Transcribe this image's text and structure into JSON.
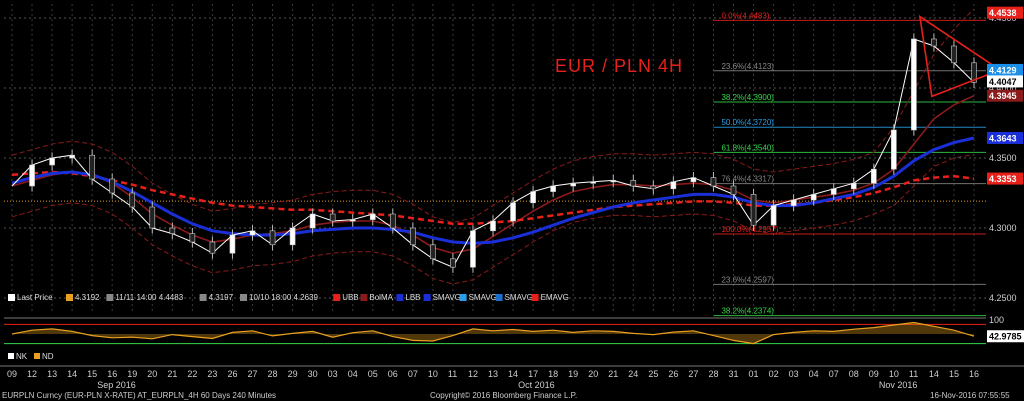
{
  "chart_data": {
    "type": "line",
    "title": "EUR / PLN 4H",
    "x_ticks": [
      "09",
      "12",
      "13",
      "14",
      "15",
      "16",
      "19",
      "20",
      "21",
      "22",
      "23",
      "26",
      "27",
      "28",
      "29",
      "30",
      "03",
      "04",
      "05",
      "06",
      "07",
      "10",
      "11",
      "12",
      "13",
      "14",
      "17",
      "18",
      "19",
      "20",
      "21",
      "24",
      "25",
      "26",
      "27",
      "28",
      "31",
      "01",
      "02",
      "03",
      "04",
      "07",
      "08",
      "09",
      "10",
      "11",
      "14",
      "15",
      "16"
    ],
    "months": [
      {
        "label": "Sep 2016",
        "at": 5
      },
      {
        "label": "Oct 2016",
        "at": 26
      },
      {
        "label": "Nov 2016",
        "at": 44
      }
    ],
    "ylim": [
      4.24,
      4.46
    ],
    "y_ticks": [
      4.25,
      4.3,
      4.35,
      4.4,
      4.45
    ],
    "y_tick_labels": [
      "4.2500",
      "4.3000",
      "4.3500",
      "4.4000",
      "4.4500"
    ],
    "price_tags": [
      {
        "label": "4.4538",
        "value": 4.4538,
        "color": "#e8201a",
        "text_color": "#ffffff"
      },
      {
        "label": "4.4129",
        "value": 4.4129,
        "color": "#1a8fe8",
        "text_color": "#ffffff"
      },
      {
        "label": "4.4047",
        "value": 4.4047,
        "color": "#ffffff",
        "text_color": "#000000"
      },
      {
        "label": "4.3945",
        "value": 4.3945,
        "color": "#8b1a1a",
        "text_color": "#ffffff"
      },
      {
        "label": "4.3643",
        "value": 4.3643,
        "color": "#1a2fd8",
        "text_color": "#ffffff"
      },
      {
        "label": "4.3353",
        "value": 4.3353,
        "color": "#e8201a",
        "text_color": "#ffffff"
      }
    ],
    "fib_levels": [
      {
        "label": "0.0%(4.4483)",
        "value": 4.4483,
        "color": "#e8201a"
      },
      {
        "label": "23.6%(4.4123)",
        "value": 4.4123,
        "color": "#888888"
      },
      {
        "label": "38.2%(4.3900)",
        "value": 4.39,
        "color": "#35d84a"
      },
      {
        "label": "50.0%(4.3720)",
        "value": 4.372,
        "color": "#2a9fe8"
      },
      {
        "label": "61.8%(4.3540)",
        "value": 4.354,
        "color": "#35d84a"
      },
      {
        "label": "76.4%(4.3317)",
        "value": 4.3317,
        "color": "#888888"
      },
      {
        "label": "100.0%(4.2957)",
        "value": 4.2957,
        "color": "#e8201a"
      },
      {
        "label": "23.6%(4.2597)",
        "value": 4.2597,
        "color": "#888888"
      },
      {
        "label": "38.2%(4.2374)",
        "value": 4.2374,
        "color": "#35d84a"
      }
    ],
    "series": [
      {
        "name": "Last Price",
        "values": [
          4.33,
          4.345,
          4.35,
          4.352,
          4.335,
          4.325,
          4.315,
          4.3,
          4.296,
          4.29,
          4.282,
          4.295,
          4.298,
          4.288,
          4.3,
          4.31,
          4.305,
          4.306,
          4.31,
          4.3,
          4.288,
          4.278,
          4.272,
          4.298,
          4.305,
          4.318,
          4.326,
          4.33,
          4.332,
          4.333,
          4.334,
          4.33,
          4.328,
          4.333,
          4.336,
          4.33,
          4.324,
          4.302,
          4.316,
          4.32,
          4.324,
          4.328,
          4.332,
          4.342,
          4.37,
          4.435,
          4.43,
          4.418,
          4.404
        ]
      },
      {
        "name": "SMAVG",
        "values": [
          4.332,
          4.336,
          4.339,
          4.34,
          4.338,
          4.333,
          4.326,
          4.318,
          4.31,
          4.303,
          4.298,
          4.296,
          4.295,
          4.295,
          4.296,
          4.298,
          4.299,
          4.3,
          4.3,
          4.299,
          4.297,
          4.293,
          4.29,
          4.289,
          4.29,
          4.293,
          4.297,
          4.302,
          4.307,
          4.311,
          4.315,
          4.318,
          4.32,
          4.322,
          4.324,
          4.324,
          4.322,
          4.318,
          4.316,
          4.316,
          4.318,
          4.321,
          4.324,
          4.329,
          4.337,
          4.348,
          4.356,
          4.361,
          4.3643
        ]
      },
      {
        "name": "EMAVG",
        "values": [
          4.338,
          4.339,
          4.34,
          4.339,
          4.337,
          4.334,
          4.331,
          4.327,
          4.324,
          4.321,
          4.318,
          4.316,
          4.315,
          4.314,
          4.313,
          4.313,
          4.312,
          4.311,
          4.31,
          4.309,
          4.307,
          4.305,
          4.303,
          4.303,
          4.304,
          4.305,
          4.307,
          4.309,
          4.311,
          4.313,
          4.315,
          4.316,
          4.317,
          4.318,
          4.319,
          4.319,
          4.318,
          4.316,
          4.316,
          4.317,
          4.318,
          4.32,
          4.322,
          4.325,
          4.329,
          4.334,
          4.336,
          4.337,
          4.3353
        ]
      },
      {
        "name": "BolMA",
        "values": [
          4.33,
          4.334,
          4.338,
          4.34,
          4.338,
          4.332,
          4.322,
          4.31,
          4.302,
          4.295,
          4.29,
          4.292,
          4.295,
          4.296,
          4.298,
          4.302,
          4.304,
          4.305,
          4.305,
          4.302,
          4.295,
          4.286,
          4.282,
          4.285,
          4.294,
          4.303,
          4.312,
          4.32,
          4.326,
          4.329,
          4.331,
          4.331,
          4.33,
          4.331,
          4.332,
          4.331,
          4.327,
          4.32,
          4.318,
          4.32,
          4.322,
          4.324,
          4.327,
          4.332,
          4.342,
          4.36,
          4.378,
          4.388,
          4.3945
        ]
      }
    ],
    "legend": [
      {
        "label": "Last Price",
        "color": "#ffffff"
      },
      {
        "label": "4.3192",
        "color": "#e8a020"
      },
      {
        "label": "11/11 14:00 4.4483",
        "color": "#888888"
      },
      {
        "label": "4.3197",
        "color": "#888888"
      },
      {
        "label": "10/10 18:00 4.2639",
        "color": "#888888"
      },
      {
        "label": "UBB",
        "color": "#e8201a"
      },
      {
        "label": "BolMA",
        "color": "#8b1a1a"
      },
      {
        "label": "LBB",
        "color": "#1a2fd8"
      },
      {
        "label": "SMAVG",
        "color": "#1a2fd8"
      },
      {
        "label": "SMAVG",
        "color": "#2a9fe8"
      },
      {
        "label": "SMAVG",
        "color": "#1a6fc8"
      },
      {
        "label": "EMAVG",
        "color": "#e8201a"
      }
    ],
    "oscillator": {
      "ylim": [
        0,
        100
      ],
      "top_label": "100",
      "value_tag": "42.9785",
      "legend": [
        {
          "label": "NK",
          "color": "#ffffff"
        },
        {
          "label": "ND",
          "color": "#e8a020"
        }
      ],
      "values": [
        50,
        62,
        66,
        58,
        45,
        38,
        40,
        35,
        48,
        42,
        36,
        55,
        60,
        44,
        52,
        58,
        40,
        54,
        60,
        42,
        30,
        28,
        45,
        66,
        60,
        64,
        58,
        62,
        55,
        60,
        58,
        52,
        48,
        56,
        60,
        45,
        30,
        20,
        48,
        55,
        60,
        58,
        65,
        70,
        78,
        86,
        74,
        62,
        43
      ]
    },
    "grid": true
  },
  "footer": {
    "left": "EURPLN Curncy (EUR-PLN X-RATE) AT_EURPLN_4H 60 Days 240 Minutes",
    "center": "Copyright© 2016 Bloomberg Finance L.P.",
    "right": "16-Nov-2016 07:55:55"
  }
}
